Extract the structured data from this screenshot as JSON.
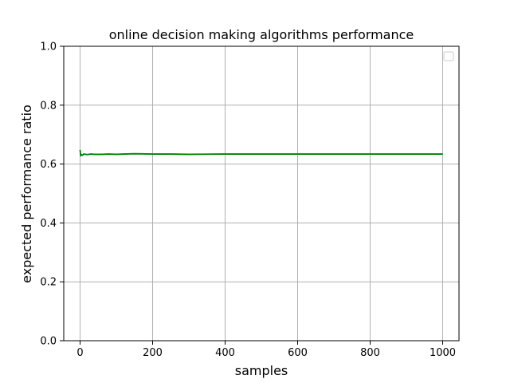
{
  "chart_data": {
    "type": "line",
    "title": "online decision making algorithms performance",
    "xlabel": "samples",
    "ylabel": "expected performance ratio",
    "xlim": [
      -45,
      1045
    ],
    "ylim": [
      0.0,
      1.0
    ],
    "xticks": [
      0,
      200,
      400,
      600,
      800,
      1000
    ],
    "xtick_labels": [
      "0",
      "200",
      "400",
      "600",
      "800",
      "1000"
    ],
    "yticks": [
      0.0,
      0.2,
      0.4,
      0.6,
      0.8,
      1.0
    ],
    "ytick_labels": [
      "0.0",
      "0.2",
      "0.4",
      "0.6",
      "0.8",
      "1.0"
    ],
    "grid": true,
    "legend": {
      "placement": "top-right",
      "entries": []
    },
    "series": [
      {
        "color": "#008000",
        "x": [
          0,
          2,
          4,
          6,
          8,
          10,
          15,
          20,
          30,
          40,
          60,
          80,
          100,
          120,
          150,
          200,
          250,
          300,
          400,
          500,
          600,
          700,
          800,
          900,
          1000
        ],
        "y": [
          0.648,
          0.628,
          0.632,
          0.63,
          0.631,
          0.634,
          0.633,
          0.632,
          0.634,
          0.633,
          0.633,
          0.634,
          0.633,
          0.634,
          0.635,
          0.634,
          0.634,
          0.633,
          0.634,
          0.634,
          0.634,
          0.634,
          0.634,
          0.634,
          0.634
        ]
      }
    ]
  }
}
